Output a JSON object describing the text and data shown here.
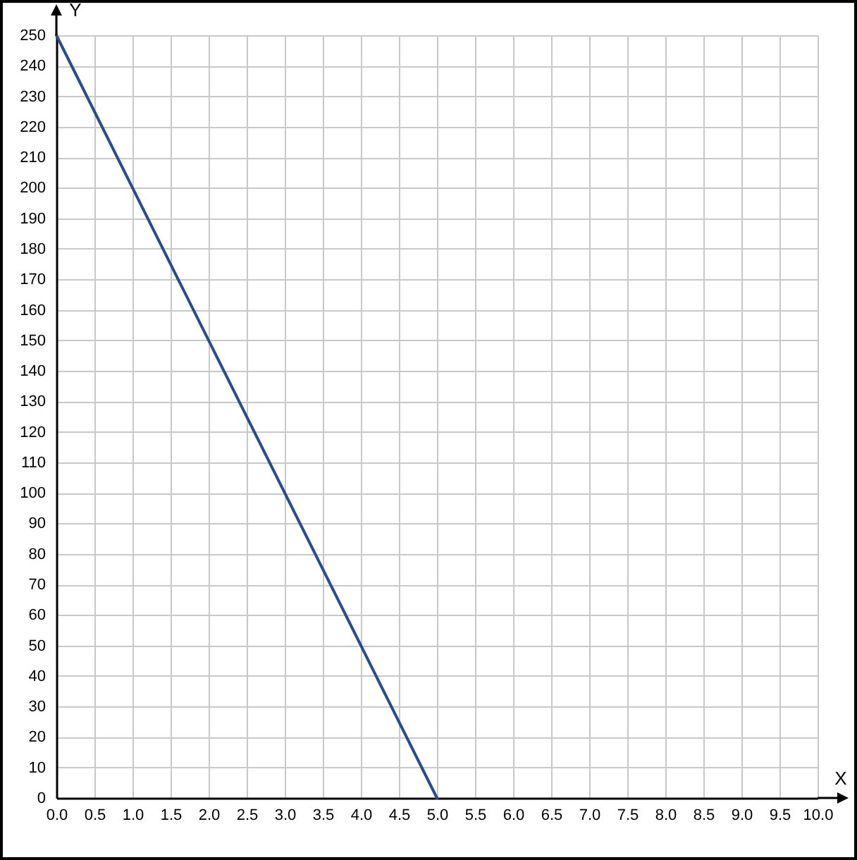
{
  "chart_data": {
    "type": "line",
    "xlabel": "X",
    "ylabel": "Y",
    "x": [
      0,
      5
    ],
    "values": [
      250,
      0
    ],
    "color": "#2a4b8d",
    "line_style": "solid",
    "xlim": [
      0,
      10
    ],
    "ylim": [
      0,
      250
    ],
    "xticks": [
      {
        "value": 0,
        "label": "0.0"
      },
      0.5,
      {
        "value": 1,
        "label": "1.0"
      },
      1.5,
      {
        "value": 2,
        "label": "2.0"
      },
      2.5,
      {
        "value": 3,
        "label": "3.0"
      },
      3.5,
      {
        "value": 4,
        "label": "4.0"
      },
      4.5,
      {
        "value": 5,
        "label": "5.0"
      },
      5.5,
      {
        "value": 6,
        "label": "6.0"
      },
      6.5,
      {
        "value": 7,
        "label": "7.0"
      },
      7.5,
      {
        "value": 8,
        "label": "8.0"
      },
      8.5,
      {
        "value": 9,
        "label": "9.0"
      },
      9.5,
      {
        "value": 10,
        "label": "10.0"
      }
    ],
    "yticks": [
      0,
      10,
      20,
      30,
      40,
      50,
      60,
      70,
      80,
      90,
      100,
      110,
      120,
      130,
      140,
      150,
      160,
      170,
      180,
      190,
      200,
      210,
      220,
      230,
      240,
      250
    ],
    "grid": true
  }
}
